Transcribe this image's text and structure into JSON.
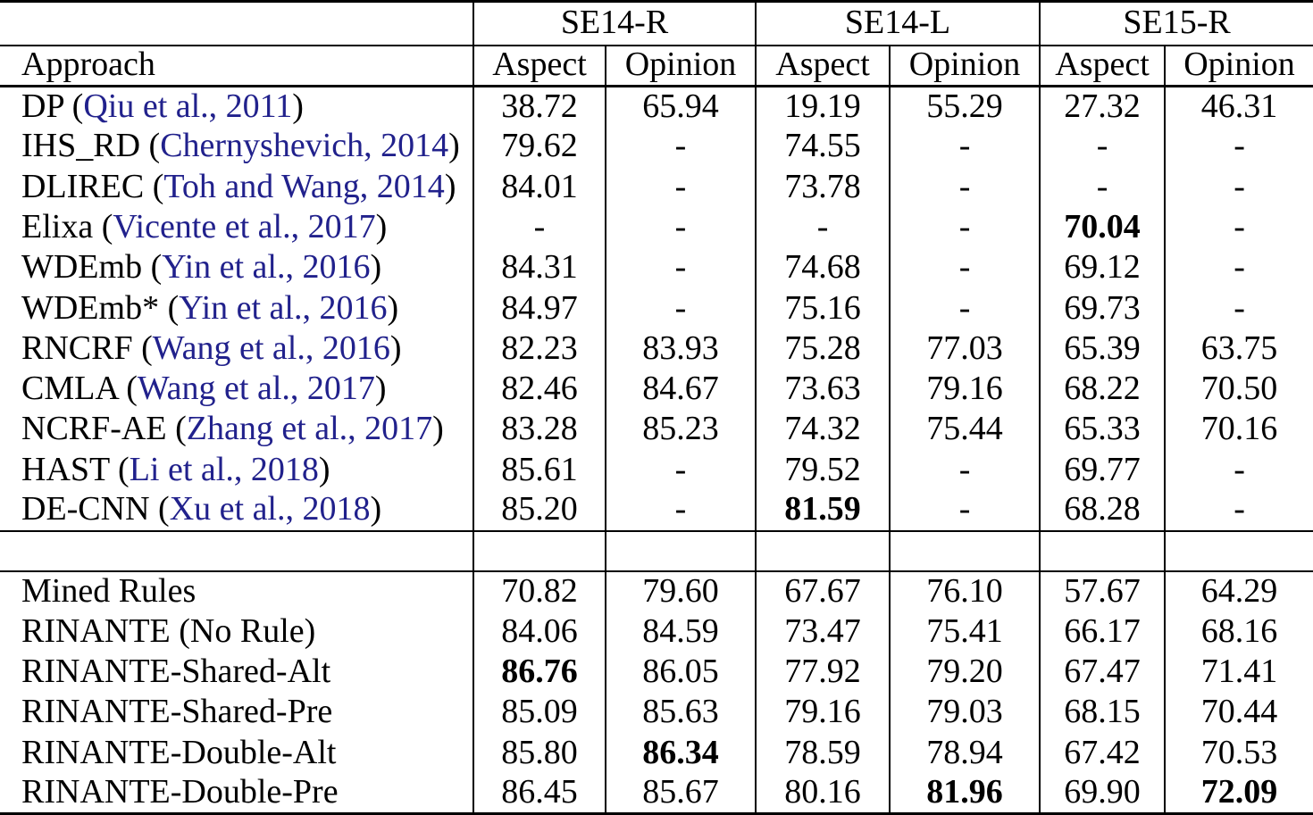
{
  "table": {
    "groups": [
      "SE14-R",
      "SE14-L",
      "SE15-R"
    ],
    "approach_header": "Approach",
    "metric_cols": [
      "Aspect",
      "Opinion"
    ],
    "missing_value": "-",
    "sections": [
      {
        "rows": [
          {
            "approach": "DP",
            "citation": "Qiu et al., 2011",
            "values": [
              "38.72",
              "65.94",
              "19.19",
              "55.29",
              "27.32",
              "46.31"
            ],
            "bold": []
          },
          {
            "approach": "IHS_RD",
            "citation": "Chernyshevich, 2014",
            "values": [
              "79.62",
              "-",
              "74.55",
              "-",
              "-",
              "-"
            ],
            "bold": []
          },
          {
            "approach": "DLIREC",
            "citation": "Toh and Wang, 2014",
            "values": [
              "84.01",
              "-",
              "73.78",
              "-",
              "-",
              "-"
            ],
            "bold": []
          },
          {
            "approach": "Elixa",
            "citation": "Vicente et al., 2017",
            "values": [
              "-",
              "-",
              "-",
              "-",
              "70.04",
              "-"
            ],
            "bold": [
              4
            ]
          },
          {
            "approach": "WDEmb",
            "citation": "Yin et al., 2016",
            "values": [
              "84.31",
              "-",
              "74.68",
              "-",
              "69.12",
              "-"
            ],
            "bold": []
          },
          {
            "approach": "WDEmb*",
            "citation": "Yin et al., 2016",
            "values": [
              "84.97",
              "-",
              "75.16",
              "-",
              "69.73",
              "-"
            ],
            "bold": []
          },
          {
            "approach": "RNCRF",
            "citation": "Wang et al., 2016",
            "values": [
              "82.23",
              "83.93",
              "75.28",
              "77.03",
              "65.39",
              "63.75"
            ],
            "bold": []
          },
          {
            "approach": "CMLA",
            "citation": "Wang et al., 2017",
            "values": [
              "82.46",
              "84.67",
              "73.63",
              "79.16",
              "68.22",
              "70.50"
            ],
            "bold": []
          },
          {
            "approach": "NCRF-AE",
            "citation": "Zhang et al., 2017",
            "values": [
              "83.28",
              "85.23",
              "74.32",
              "75.44",
              "65.33",
              "70.16"
            ],
            "bold": []
          },
          {
            "approach": "HAST",
            "citation": "Li et al., 2018",
            "values": [
              "85.61",
              "-",
              "79.52",
              "-",
              "69.77",
              "-"
            ],
            "bold": []
          },
          {
            "approach": "DE-CNN",
            "citation": "Xu et al., 2018",
            "values": [
              "85.20",
              "-",
              "81.59",
              "-",
              "68.28",
              "-"
            ],
            "bold": [
              2
            ]
          }
        ]
      },
      {
        "rows": [
          {
            "approach": "Mined Rules",
            "citation": null,
            "values": [
              "70.82",
              "79.60",
              "67.67",
              "76.10",
              "57.67",
              "64.29"
            ],
            "bold": []
          },
          {
            "approach": "RINANTE (No Rule)",
            "citation": null,
            "values": [
              "84.06",
              "84.59",
              "73.47",
              "75.41",
              "66.17",
              "68.16"
            ],
            "bold": []
          },
          {
            "approach": "RINANTE-Shared-Alt",
            "citation": null,
            "values": [
              "86.76",
              "86.05",
              "77.92",
              "79.20",
              "67.47",
              "71.41"
            ],
            "bold": [
              0
            ]
          },
          {
            "approach": "RINANTE-Shared-Pre",
            "citation": null,
            "values": [
              "85.09",
              "85.63",
              "79.16",
              "79.03",
              "68.15",
              "70.44"
            ],
            "bold": []
          },
          {
            "approach": "RINANTE-Double-Alt",
            "citation": null,
            "values": [
              "85.80",
              "86.34",
              "78.59",
              "78.94",
              "67.42",
              "70.53"
            ],
            "bold": [
              1
            ]
          },
          {
            "approach": "RINANTE-Double-Pre",
            "citation": null,
            "values": [
              "86.45",
              "85.67",
              "80.16",
              "81.96",
              "69.90",
              "72.09"
            ],
            "bold": [
              3,
              5
            ]
          }
        ]
      }
    ]
  },
  "colors": {
    "text": "#000000",
    "border": "#000000",
    "citation": "#21218C",
    "background": "#FFFFFF"
  }
}
